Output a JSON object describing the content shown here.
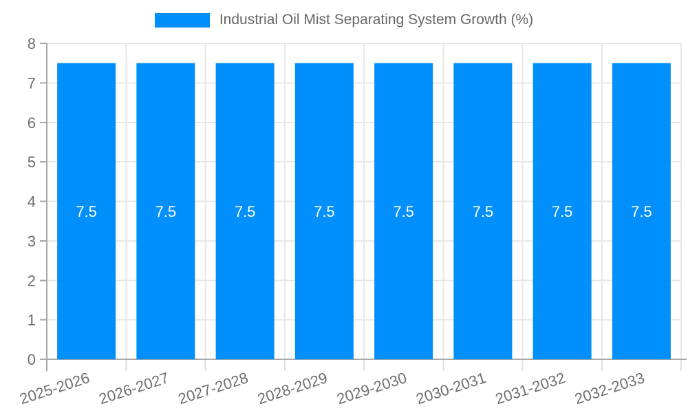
{
  "legend": {
    "label": "Industrial Oil Mist Separating System Growth (%)"
  },
  "colors": {
    "bar": "#008FFB",
    "grid": "#e7e7e7",
    "axis": "#a6a6a6",
    "tick_below": "#dedede",
    "axis_label_text": "#6e6e6e",
    "bar_label_text": "#ffffff",
    "legend_text": "#666666",
    "background": "#ffffff"
  },
  "chart_data": {
    "type": "bar",
    "title": "Industrial Oil Mist Separating System Growth (%)",
    "categories": [
      "2025-2026",
      "2026-2027",
      "2027-2028",
      "2028-2029",
      "2029-2030",
      "2030-2031",
      "2031-2032",
      "2032-2033"
    ],
    "values": [
      7.5,
      7.5,
      7.5,
      7.5,
      7.5,
      7.5,
      7.5,
      7.5
    ],
    "bar_labels": [
      "7.5",
      "7.5",
      "7.5",
      "7.5",
      "7.5",
      "7.5",
      "7.5",
      "7.5"
    ],
    "series": [
      {
        "name": "Industrial Oil Mist Separating System Growth (%)",
        "values": [
          7.5,
          7.5,
          7.5,
          7.5,
          7.5,
          7.5,
          7.5,
          7.5
        ]
      }
    ],
    "xlabel": "",
    "ylabel": "",
    "ylim": [
      0,
      8
    ],
    "yticks": [
      0,
      1,
      2,
      3,
      4,
      5,
      6,
      7,
      8
    ],
    "grid": true,
    "legend_position": "top",
    "x_label_rotation_deg": -18
  }
}
